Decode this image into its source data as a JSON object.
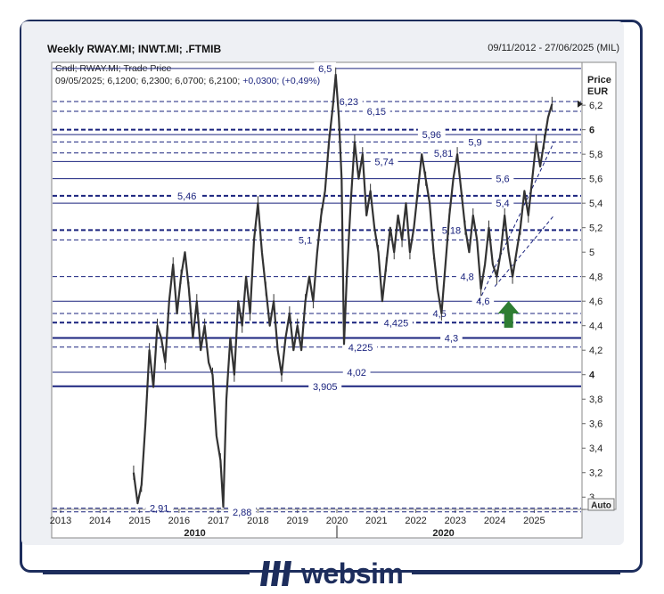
{
  "header": {
    "title": "Weekly RWAY.MI; INWT.MI; .FTMIB",
    "date_range": "09/11/2012 - 27/06/2025 (MIL)"
  },
  "legend": {
    "line1": "Cndl; RWAY.MI; Trade Price",
    "line2_values": "09/05/2025; 6,1200; 6,2300; 6,0700; 6,2100;",
    "line2_change": "+0,0300; (+0,49%)"
  },
  "axis": {
    "y_title_1": "Price",
    "y_title_2": "EUR",
    "auto_button": "Auto"
  },
  "brand": {
    "name": "websim"
  },
  "colors": {
    "line": "#1a237e",
    "label": "#1a237e",
    "candle": "#333333",
    "arrow": "#2e7d32"
  },
  "chart_data": {
    "type": "line",
    "ylim": [
      2.9,
      6.55
    ],
    "xlim": [
      2013,
      2025.6
    ],
    "yticks": [
      {
        "v": 2.9,
        "label": ""
      },
      {
        "v": 3.0,
        "label": "3"
      },
      {
        "v": 3.2,
        "label": "3,2"
      },
      {
        "v": 3.4,
        "label": "3,4"
      },
      {
        "v": 3.6,
        "label": "3,6"
      },
      {
        "v": 3.8,
        "label": "3,8"
      },
      {
        "v": 4.0,
        "label": "4",
        "bold": true
      },
      {
        "v": 4.2,
        "label": "4,2"
      },
      {
        "v": 4.4,
        "label": "4,4"
      },
      {
        "v": 4.6,
        "label": "4,6"
      },
      {
        "v": 4.8,
        "label": "4,8"
      },
      {
        "v": 5.0,
        "label": "5"
      },
      {
        "v": 5.2,
        "label": "5,2"
      },
      {
        "v": 5.4,
        "label": "5,4"
      },
      {
        "v": 5.6,
        "label": "5,6"
      },
      {
        "v": 5.8,
        "label": "5,8"
      },
      {
        "v": 6.0,
        "label": "6",
        "bold": true
      },
      {
        "v": 6.2,
        "label": "6,2"
      }
    ],
    "xticks": [
      {
        "v": 2013,
        "label": "2013"
      },
      {
        "v": 2014,
        "label": "2014"
      },
      {
        "v": 2015,
        "label": "2015"
      },
      {
        "v": 2016,
        "label": "2016"
      },
      {
        "v": 2017,
        "label": "2017"
      },
      {
        "v": 2018,
        "label": "2018"
      },
      {
        "v": 2019,
        "label": "2019"
      },
      {
        "v": 2020,
        "label": "2020"
      },
      {
        "v": 2021,
        "label": "2021"
      },
      {
        "v": 2022,
        "label": "2022"
      },
      {
        "v": 2023,
        "label": "2023"
      },
      {
        "v": 2024,
        "label": "2024"
      },
      {
        "v": 2025,
        "label": "2025"
      }
    ],
    "decade_labels": [
      {
        "v": 2016.4,
        "label": "2010"
      },
      {
        "v": 2022.7,
        "label": "2020"
      }
    ],
    "decade_marker": 2020,
    "levels": [
      {
        "v": 6.5,
        "label": "6,5",
        "style": "solid",
        "lx": 2019.7
      },
      {
        "v": 6.23,
        "label": "6,23",
        "style": "dashed",
        "lx": 2020.3
      },
      {
        "v": 6.15,
        "label": "6,15",
        "style": "dashed",
        "lx": 2021.0
      },
      {
        "v": 6.0,
        "label": "",
        "style": "dashed-bold"
      },
      {
        "v": 5.96,
        "label": "5,96",
        "style": "solid",
        "lx": 2022.4
      },
      {
        "v": 5.9,
        "label": "5,9",
        "style": "dashed",
        "lx": 2023.5
      },
      {
        "v": 5.81,
        "label": "5,81",
        "style": "dashed",
        "lx": 2022.7
      },
      {
        "v": 5.74,
        "label": "5,74",
        "style": "solid",
        "lx": 2021.2
      },
      {
        "v": 5.6,
        "label": "5,6",
        "style": "solid",
        "lx": 2024.2
      },
      {
        "v": 5.46,
        "label": "5,46",
        "style": "dashed-bold",
        "lx": 2016.2
      },
      {
        "v": 5.4,
        "label": "5,4",
        "style": "solid",
        "lx": 2024.2
      },
      {
        "v": 5.18,
        "label": "5,18",
        "style": "dashed-bold",
        "lx": 2022.9
      },
      {
        "v": 5.1,
        "label": "5,1",
        "style": "dashed",
        "lx": 2019.2
      },
      {
        "v": 4.8,
        "label": "4,8",
        "style": "dashed",
        "lx": 2023.3
      },
      {
        "v": 4.6,
        "label": "4,6",
        "style": "solid",
        "lx": 2023.7
      },
      {
        "v": 4.5,
        "label": "4,5",
        "style": "dashed",
        "lx": 2022.6
      },
      {
        "v": 4.425,
        "label": "4,425",
        "style": "dashed-bold",
        "lx": 2021.5
      },
      {
        "v": 4.3,
        "label": "4,3",
        "style": "solid-bold",
        "lx": 2022.9
      },
      {
        "v": 4.225,
        "label": "4,225",
        "style": "dashed",
        "lx": 2020.6
      },
      {
        "v": 4.02,
        "label": "4,02",
        "style": "solid",
        "lx": 2020.5
      },
      {
        "v": 3.905,
        "label": "3,905",
        "style": "solid-bold",
        "lx": 2019.7
      },
      {
        "v": 2.91,
        "label": "2,91",
        "style": "dashed",
        "lx": 2015.5
      },
      {
        "v": 2.88,
        "label": "2,88",
        "style": "dashed",
        "lx": 2017.6
      }
    ],
    "channel": [
      {
        "x1": 2023.6,
        "y1": 4.6,
        "x2": 2025.5,
        "y2": 5.9
      },
      {
        "x1": 2024.0,
        "y1": 4.72,
        "x2": 2025.5,
        "y2": 5.3
      }
    ],
    "arrow": {
      "x": 2024.35,
      "y": 4.5
    },
    "price": [
      {
        "x": 2014.85,
        "y": 3.2
      },
      {
        "x": 2014.95,
        "y": 2.95
      },
      {
        "x": 2015.05,
        "y": 3.1
      },
      {
        "x": 2015.15,
        "y": 3.6
      },
      {
        "x": 2015.25,
        "y": 4.2
      },
      {
        "x": 2015.35,
        "y": 3.9
      },
      {
        "x": 2015.45,
        "y": 4.4
      },
      {
        "x": 2015.55,
        "y": 4.3
      },
      {
        "x": 2015.65,
        "y": 4.1
      },
      {
        "x": 2015.75,
        "y": 4.6
      },
      {
        "x": 2015.85,
        "y": 4.9
      },
      {
        "x": 2015.95,
        "y": 4.5
      },
      {
        "x": 2016.05,
        "y": 4.8
      },
      {
        "x": 2016.15,
        "y": 5.0
      },
      {
        "x": 2016.25,
        "y": 4.7
      },
      {
        "x": 2016.35,
        "y": 4.3
      },
      {
        "x": 2016.45,
        "y": 4.6
      },
      {
        "x": 2016.55,
        "y": 4.2
      },
      {
        "x": 2016.65,
        "y": 4.4
      },
      {
        "x": 2016.75,
        "y": 4.1
      },
      {
        "x": 2016.85,
        "y": 4.0
      },
      {
        "x": 2016.95,
        "y": 3.5
      },
      {
        "x": 2017.05,
        "y": 3.3
      },
      {
        "x": 2017.12,
        "y": 2.92
      },
      {
        "x": 2017.2,
        "y": 3.8
      },
      {
        "x": 2017.3,
        "y": 4.3
      },
      {
        "x": 2017.4,
        "y": 4.0
      },
      {
        "x": 2017.5,
        "y": 4.6
      },
      {
        "x": 2017.6,
        "y": 4.4
      },
      {
        "x": 2017.7,
        "y": 4.8
      },
      {
        "x": 2017.8,
        "y": 4.5
      },
      {
        "x": 2017.9,
        "y": 5.1
      },
      {
        "x": 2018.0,
        "y": 5.4
      },
      {
        "x": 2018.1,
        "y": 5.0
      },
      {
        "x": 2018.2,
        "y": 4.7
      },
      {
        "x": 2018.3,
        "y": 4.4
      },
      {
        "x": 2018.4,
        "y": 4.6
      },
      {
        "x": 2018.5,
        "y": 4.2
      },
      {
        "x": 2018.6,
        "y": 4.0
      },
      {
        "x": 2018.7,
        "y": 4.3
      },
      {
        "x": 2018.8,
        "y": 4.5
      },
      {
        "x": 2018.9,
        "y": 4.2
      },
      {
        "x": 2019.0,
        "y": 4.4
      },
      {
        "x": 2019.1,
        "y": 4.2
      },
      {
        "x": 2019.2,
        "y": 4.6
      },
      {
        "x": 2019.3,
        "y": 4.8
      },
      {
        "x": 2019.4,
        "y": 4.6
      },
      {
        "x": 2019.5,
        "y": 5.0
      },
      {
        "x": 2019.6,
        "y": 5.3
      },
      {
        "x": 2019.7,
        "y": 5.5
      },
      {
        "x": 2019.8,
        "y": 5.9
      },
      {
        "x": 2019.9,
        "y": 6.2
      },
      {
        "x": 2019.97,
        "y": 6.45
      },
      {
        "x": 2020.05,
        "y": 6.1
      },
      {
        "x": 2020.12,
        "y": 5.6
      },
      {
        "x": 2020.18,
        "y": 4.25
      },
      {
        "x": 2020.25,
        "y": 4.8
      },
      {
        "x": 2020.35,
        "y": 5.4
      },
      {
        "x": 2020.45,
        "y": 5.9
      },
      {
        "x": 2020.55,
        "y": 5.6
      },
      {
        "x": 2020.65,
        "y": 5.8
      },
      {
        "x": 2020.75,
        "y": 5.3
      },
      {
        "x": 2020.85,
        "y": 5.5
      },
      {
        "x": 2020.95,
        "y": 5.2
      },
      {
        "x": 2021.05,
        "y": 5.0
      },
      {
        "x": 2021.15,
        "y": 4.6
      },
      {
        "x": 2021.25,
        "y": 4.9
      },
      {
        "x": 2021.35,
        "y": 5.2
      },
      {
        "x": 2021.45,
        "y": 5.0
      },
      {
        "x": 2021.55,
        "y": 5.3
      },
      {
        "x": 2021.65,
        "y": 5.1
      },
      {
        "x": 2021.75,
        "y": 5.4
      },
      {
        "x": 2021.85,
        "y": 5.0
      },
      {
        "x": 2021.95,
        "y": 5.2
      },
      {
        "x": 2022.05,
        "y": 5.5
      },
      {
        "x": 2022.15,
        "y": 5.8
      },
      {
        "x": 2022.25,
        "y": 5.6
      },
      {
        "x": 2022.35,
        "y": 5.4
      },
      {
        "x": 2022.45,
        "y": 5.0
      },
      {
        "x": 2022.55,
        "y": 4.7
      },
      {
        "x": 2022.65,
        "y": 4.5
      },
      {
        "x": 2022.75,
        "y": 4.9
      },
      {
        "x": 2022.85,
        "y": 5.3
      },
      {
        "x": 2022.95,
        "y": 5.6
      },
      {
        "x": 2023.05,
        "y": 5.8
      },
      {
        "x": 2023.15,
        "y": 5.5
      },
      {
        "x": 2023.25,
        "y": 5.2
      },
      {
        "x": 2023.35,
        "y": 5.0
      },
      {
        "x": 2023.45,
        "y": 5.3
      },
      {
        "x": 2023.55,
        "y": 5.1
      },
      {
        "x": 2023.65,
        "y": 4.7
      },
      {
        "x": 2023.75,
        "y": 4.9
      },
      {
        "x": 2023.85,
        "y": 5.2
      },
      {
        "x": 2023.95,
        "y": 4.9
      },
      {
        "x": 2024.05,
        "y": 4.8
      },
      {
        "x": 2024.15,
        "y": 5.0
      },
      {
        "x": 2024.25,
        "y": 5.3
      },
      {
        "x": 2024.35,
        "y": 5.0
      },
      {
        "x": 2024.45,
        "y": 4.8
      },
      {
        "x": 2024.55,
        "y": 5.0
      },
      {
        "x": 2024.65,
        "y": 5.2
      },
      {
        "x": 2024.75,
        "y": 5.5
      },
      {
        "x": 2024.85,
        "y": 5.3
      },
      {
        "x": 2024.95,
        "y": 5.6
      },
      {
        "x": 2025.05,
        "y": 5.9
      },
      {
        "x": 2025.15,
        "y": 5.7
      },
      {
        "x": 2025.25,
        "y": 5.9
      },
      {
        "x": 2025.35,
        "y": 6.1
      },
      {
        "x": 2025.45,
        "y": 6.21
      }
    ]
  }
}
